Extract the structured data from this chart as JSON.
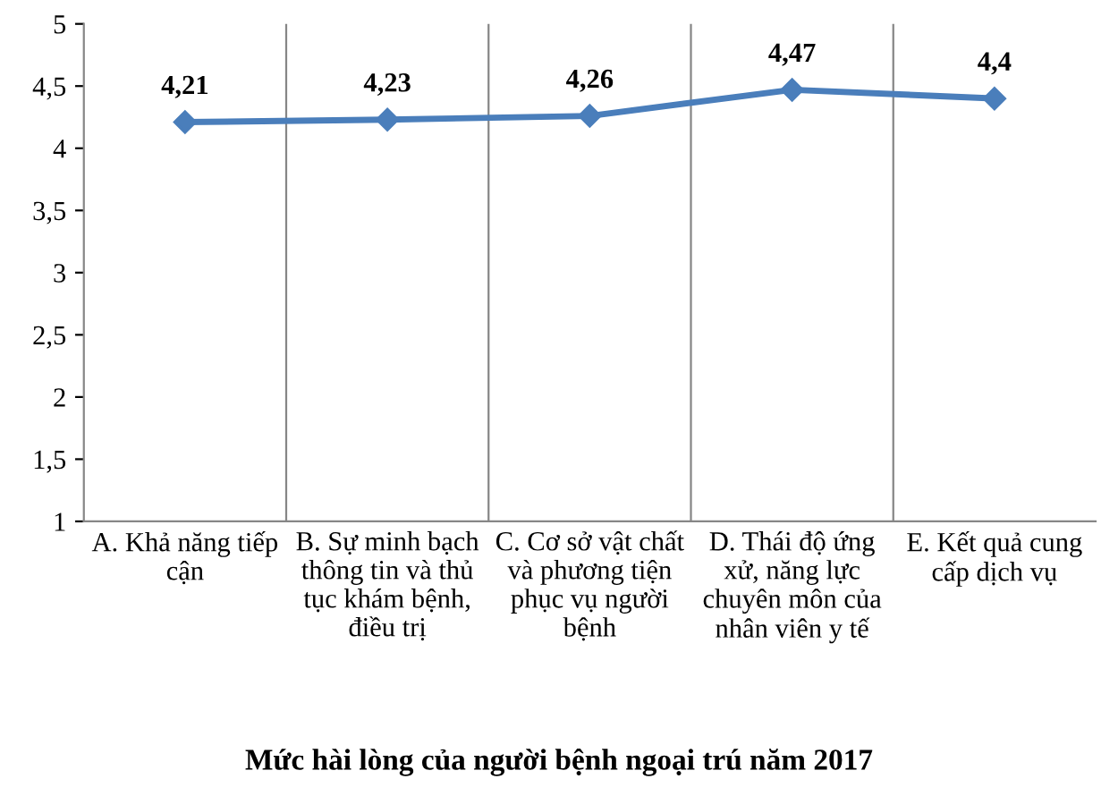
{
  "chart_data": {
    "type": "line",
    "title": "Mức hài lòng của người bệnh ngoại trú năm 2017",
    "categories": [
      "A. Khả năng tiếp cận",
      "B. Sự minh bạch thông tin và thủ tục khám bệnh, điều trị",
      "C. Cơ sở vật chất và phương tiện phục vụ người bệnh",
      "D. Thái độ ứng xử, năng lực chuyên môn của nhân viên y tế",
      "E. Kết quả cung cấp dịch vụ"
    ],
    "series": [
      {
        "color": "#4a7ebb",
        "values": [
          4.21,
          4.23,
          4.26,
          4.47,
          4.4
        ],
        "value_labels": [
          "4,21",
          "4,23",
          "4,26",
          "4,47",
          "4,4"
        ]
      }
    ],
    "ylim": [
      1,
      5
    ],
    "yticks": [
      1,
      {
        "value": 1.5,
        "label": "1,5"
      },
      2,
      {
        "value": 2.5,
        "label": "2,5"
      },
      3,
      {
        "value": 3.5,
        "label": "3,5"
      },
      4,
      {
        "value": 4.5,
        "label": "4,5"
      },
      5
    ],
    "grid": "x",
    "marker": "diamond",
    "line_style": "solid",
    "legend": false
  }
}
